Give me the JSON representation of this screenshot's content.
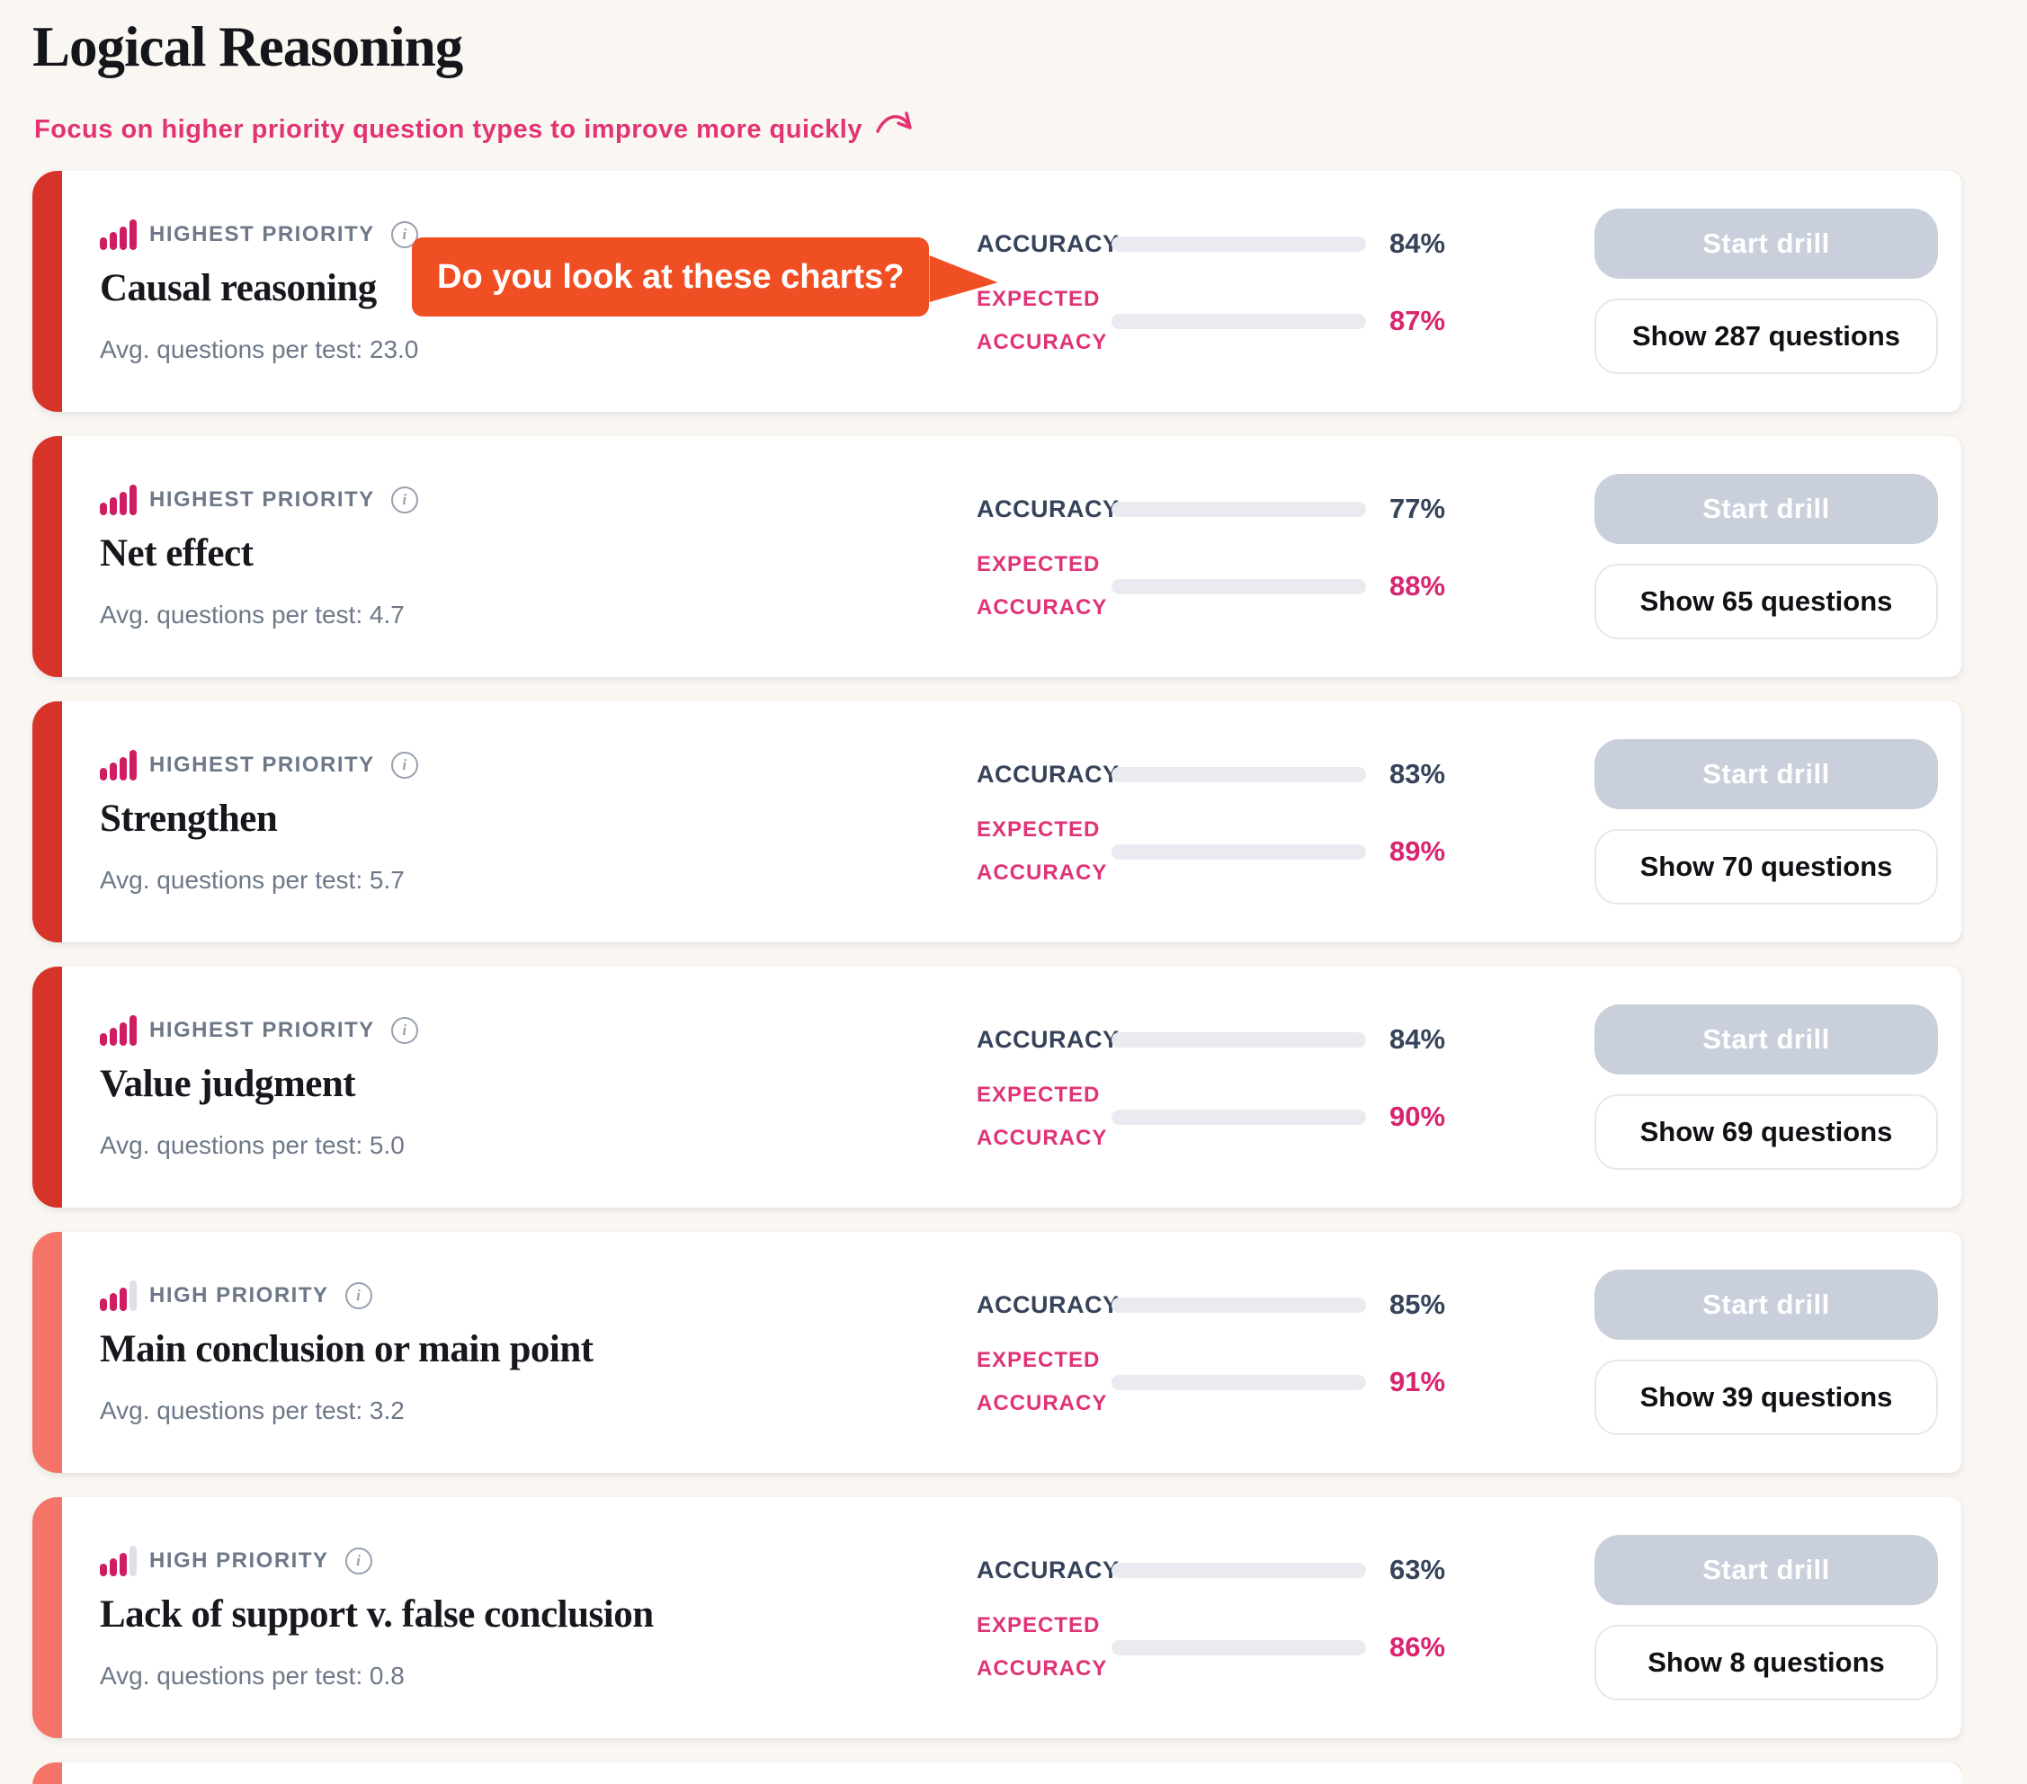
{
  "header": {
    "title": "Logical Reasoning",
    "subtitle": "Focus on higher priority question types to improve more quickly"
  },
  "callout": {
    "text": "Do you look at these charts?"
  },
  "labels": {
    "accuracy": "ACCURACY",
    "expected_line1": "EXPECTED",
    "expected_line2": "ACCURACY",
    "start_drill": "Start drill",
    "avg_prefix": "Avg. questions per test: ",
    "percent_suffix": "%"
  },
  "colors": {
    "page_background": "#faf7f3",
    "card_background": "#ffffff",
    "highest_priority_strip": "#d63429",
    "high_priority_strip": "#f47467",
    "accuracy_bar": "#36435a",
    "expected_bar": "#d9246f",
    "priority_icon_pink": "#cf1d63",
    "callout_orange": "#f04e23",
    "disabled_button_gray": "#c9d0dc",
    "subtitle_pink": "#e23373"
  },
  "cards": [
    {
      "priority": "HIGHEST PRIORITY",
      "level": "highest",
      "title": "Causal reasoning",
      "avg_questions_per_test": "23.0",
      "accuracy_pct": 84,
      "expected_accuracy_pct": 87,
      "show_questions_label": "Show 287 questions"
    },
    {
      "priority": "HIGHEST PRIORITY",
      "level": "highest",
      "title": "Net effect",
      "avg_questions_per_test": "4.7",
      "accuracy_pct": 77,
      "expected_accuracy_pct": 88,
      "show_questions_label": "Show 65 questions"
    },
    {
      "priority": "HIGHEST PRIORITY",
      "level": "highest",
      "title": "Strengthen",
      "avg_questions_per_test": "5.7",
      "accuracy_pct": 83,
      "expected_accuracy_pct": 89,
      "show_questions_label": "Show 70 questions"
    },
    {
      "priority": "HIGHEST PRIORITY",
      "level": "highest",
      "title": "Value judgment",
      "avg_questions_per_test": "5.0",
      "accuracy_pct": 84,
      "expected_accuracy_pct": 90,
      "show_questions_label": "Show 69 questions"
    },
    {
      "priority": "HIGH PRIORITY",
      "level": "high",
      "title": "Main conclusion or main point",
      "avg_questions_per_test": "3.2",
      "accuracy_pct": 85,
      "expected_accuracy_pct": 91,
      "show_questions_label": "Show 39 questions"
    },
    {
      "priority": "HIGH PRIORITY",
      "level": "high",
      "title": "Lack of support v. false conclusion",
      "avg_questions_per_test": "0.8",
      "accuracy_pct": 63,
      "expected_accuracy_pct": 86,
      "show_questions_label": "Show 8 questions"
    }
  ],
  "partial_card": {
    "level": "high"
  }
}
